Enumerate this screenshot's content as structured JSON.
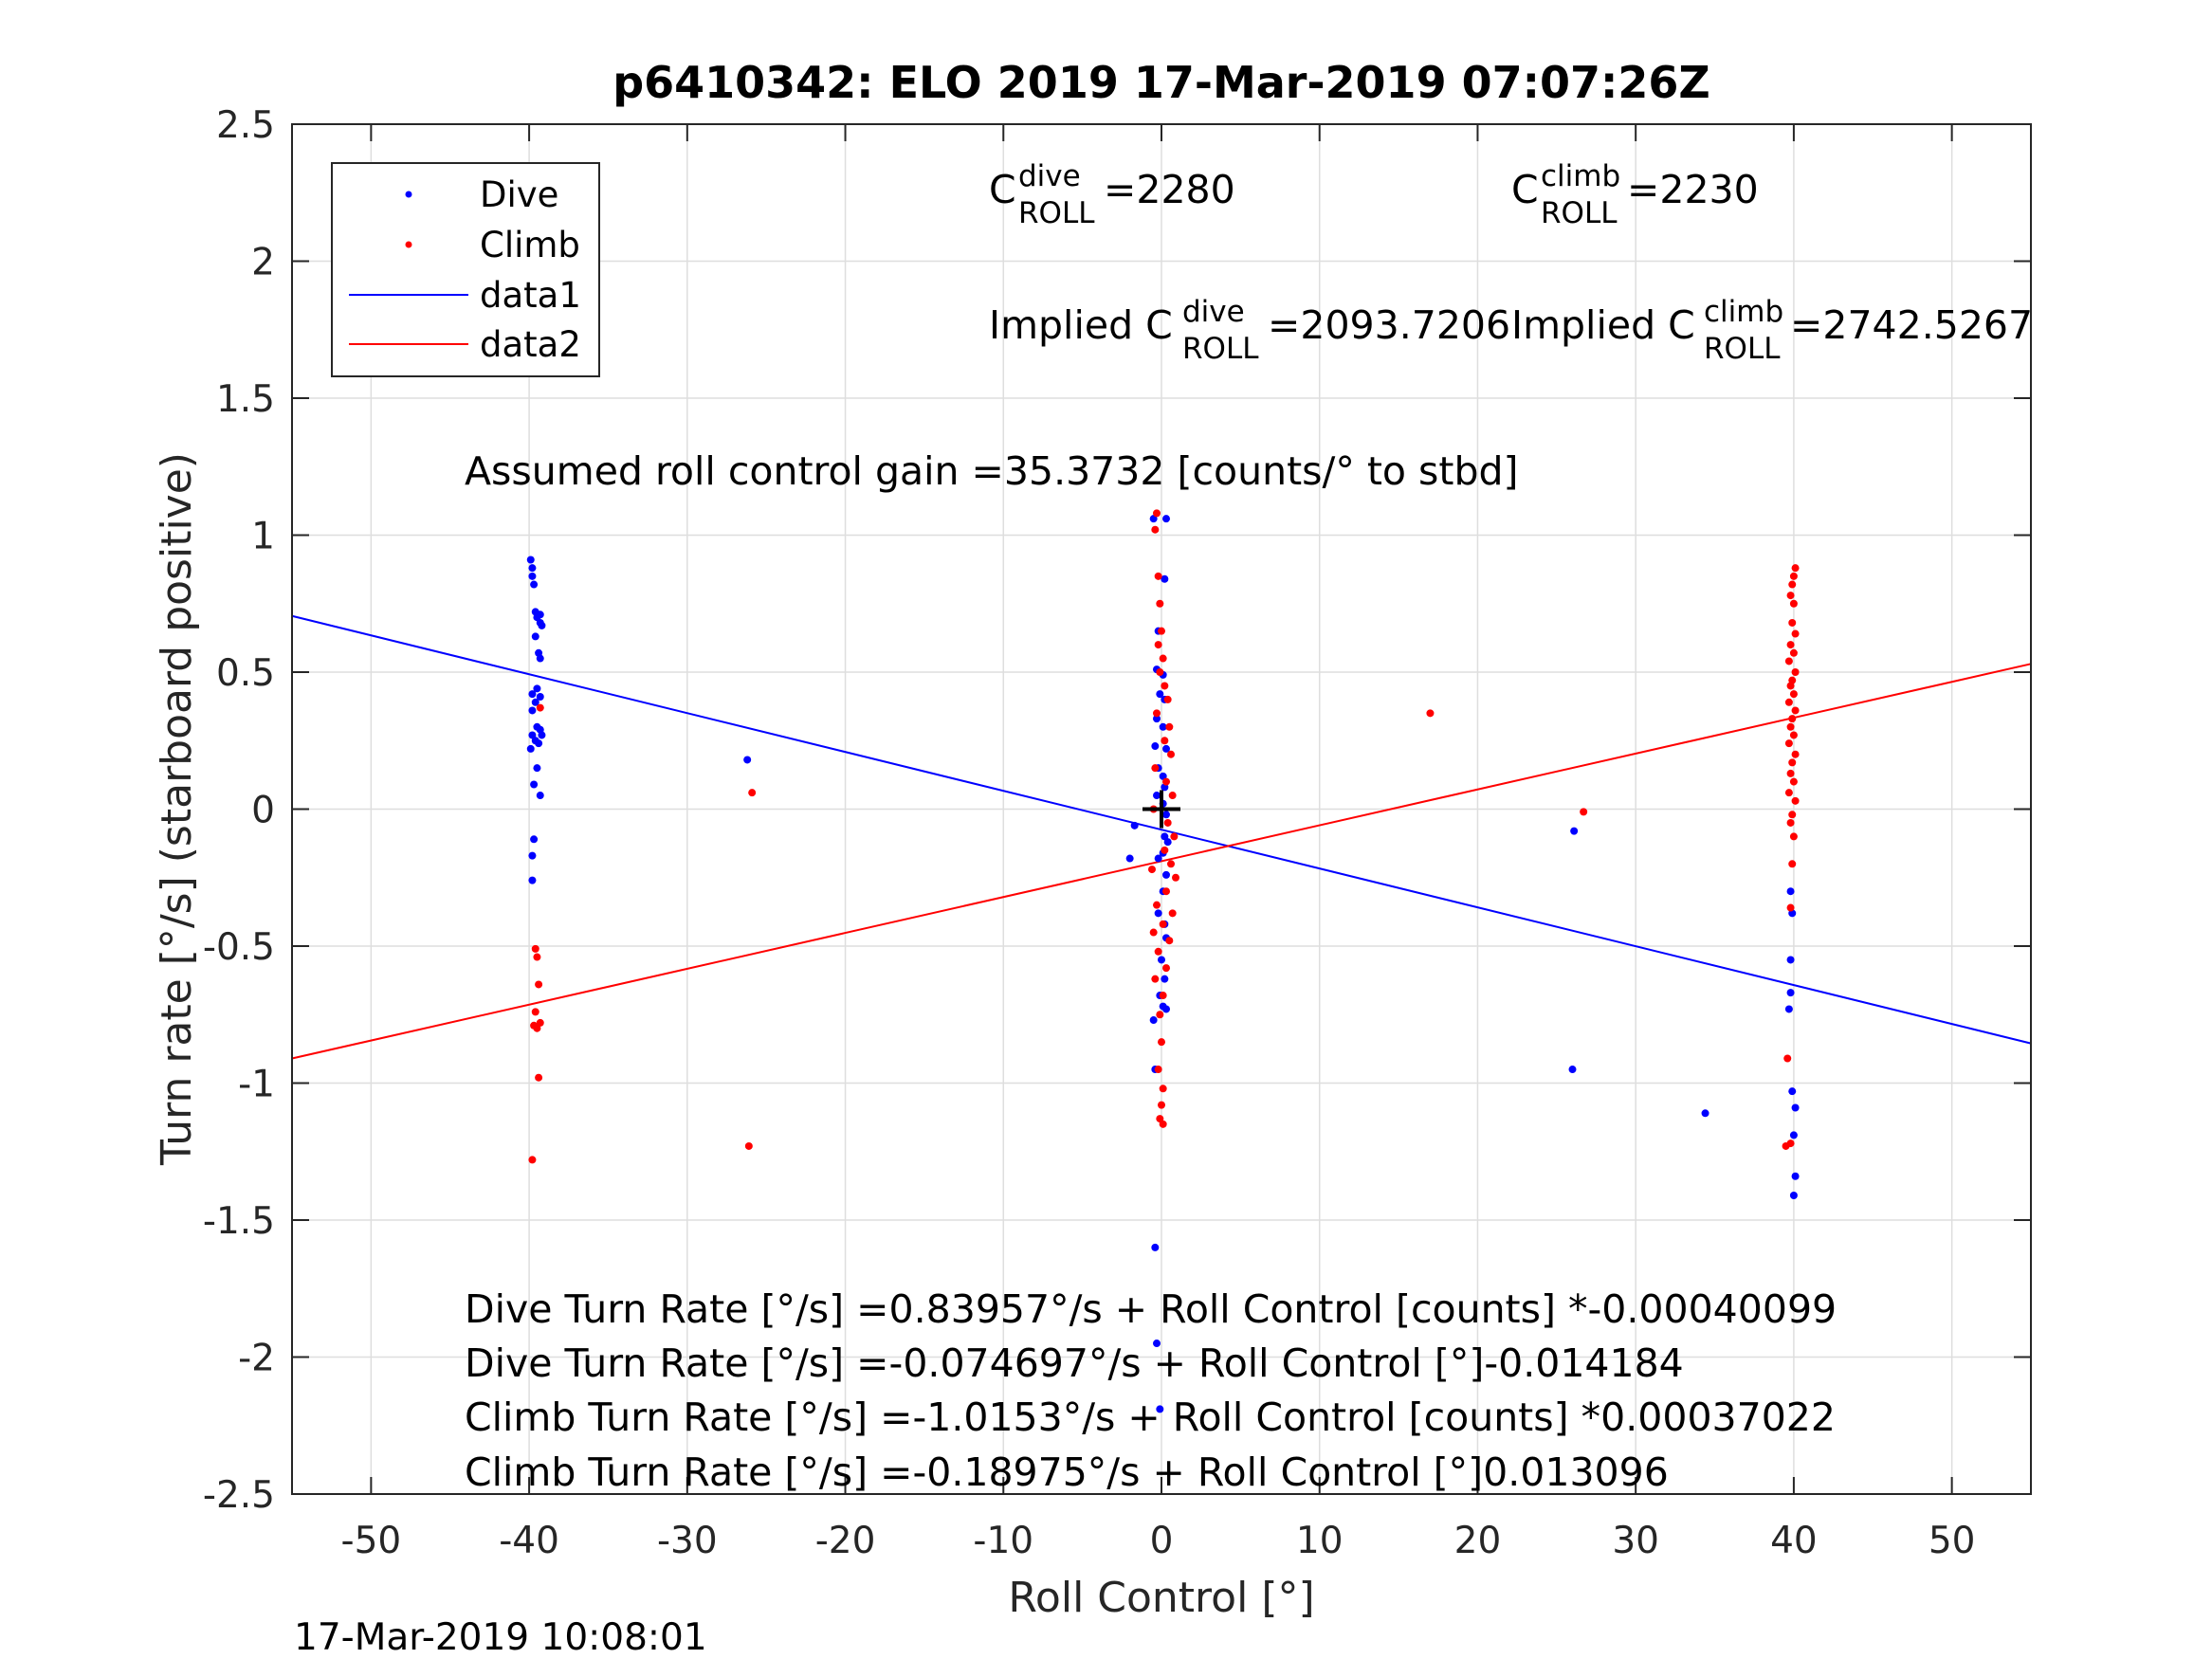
{
  "chart_data": {
    "type": "scatter",
    "title": "p6410342: ELO 2019 17-Mar-2019 07:07:26Z",
    "xlabel": "Roll Control [°]",
    "ylabel": "Turn rate [°/s] (starboard positive)",
    "xlim": [
      -55,
      55
    ],
    "ylim": [
      -2.5,
      2.5
    ],
    "xticks": [
      -50,
      -40,
      -30,
      -20,
      -10,
      0,
      10,
      20,
      30,
      40,
      50
    ],
    "yticks": [
      2.5,
      2,
      1.5,
      1,
      0.5,
      0,
      -0.5,
      -1,
      -1.5,
      -2,
      -2.5
    ],
    "xtick_labels": [
      "-50",
      "-40",
      "-30",
      "-20",
      "-10",
      "0",
      "10",
      "20",
      "30",
      "40",
      "50"
    ],
    "ytick_labels": [
      "2.5",
      "2",
      "1.5",
      "1",
      "0.5",
      "0",
      "-0.5",
      "-1",
      "-1.5",
      "-2",
      "-2.5"
    ],
    "grid": true,
    "legend_position": "top-left",
    "legend": [
      "Dive",
      "Climb",
      "data1",
      "data2"
    ],
    "series": [
      {
        "name": "Dive",
        "kind": "points",
        "color": "#0000ff",
        "points": [
          [
            -39.9,
            0.91
          ],
          [
            -39.8,
            0.88
          ],
          [
            -39.8,
            0.85
          ],
          [
            -39.7,
            0.82
          ],
          [
            -39.6,
            0.72
          ],
          [
            -39.5,
            0.7
          ],
          [
            -39.3,
            0.71
          ],
          [
            -39.3,
            0.68
          ],
          [
            -39.2,
            0.67
          ],
          [
            -39.6,
            0.63
          ],
          [
            -39.4,
            0.57
          ],
          [
            -39.3,
            0.55
          ],
          [
            -39.8,
            0.42
          ],
          [
            -39.5,
            0.44
          ],
          [
            -39.3,
            0.41
          ],
          [
            -39.6,
            0.39
          ],
          [
            -39.8,
            0.36
          ],
          [
            -39.5,
            0.3
          ],
          [
            -39.3,
            0.29
          ],
          [
            -39.8,
            0.27
          ],
          [
            -39.6,
            0.25
          ],
          [
            -39.4,
            0.24
          ],
          [
            -39.2,
            0.27
          ],
          [
            -39.9,
            0.22
          ],
          [
            -39.5,
            0.15
          ],
          [
            -39.7,
            0.09
          ],
          [
            -39.3,
            0.05
          ],
          [
            -39.7,
            -0.11
          ],
          [
            -39.8,
            -0.17
          ],
          [
            -39.8,
            -0.26
          ],
          [
            -26.2,
            0.18
          ],
          [
            -0.5,
            1.06
          ],
          [
            0.3,
            1.06
          ],
          [
            0.2,
            0.84
          ],
          [
            -0.2,
            0.65
          ],
          [
            -0.3,
            0.51
          ],
          [
            0.1,
            0.49
          ],
          [
            -0.1,
            0.42
          ],
          [
            0.2,
            0.4
          ],
          [
            -0.3,
            0.33
          ],
          [
            0.1,
            0.3
          ],
          [
            -0.4,
            0.23
          ],
          [
            0.3,
            0.22
          ],
          [
            -0.2,
            0.15
          ],
          [
            0.1,
            0.12
          ],
          [
            0.2,
            0.08
          ],
          [
            -0.3,
            0.05
          ],
          [
            0.1,
            0.02
          ],
          [
            0.3,
            -0.02
          ],
          [
            -1.7,
            -0.06
          ],
          [
            0.2,
            -0.1
          ],
          [
            0.4,
            -0.12
          ],
          [
            0.1,
            -0.16
          ],
          [
            -0.2,
            -0.18
          ],
          [
            -2.0,
            -0.18
          ],
          [
            0.3,
            -0.24
          ],
          [
            0.1,
            -0.3
          ],
          [
            -0.2,
            -0.38
          ],
          [
            0.2,
            -0.42
          ],
          [
            0.3,
            -0.47
          ],
          [
            0.0,
            -0.55
          ],
          [
            0.2,
            -0.62
          ],
          [
            -0.1,
            -0.68
          ],
          [
            0.1,
            -0.72
          ],
          [
            -0.5,
            -0.77
          ],
          [
            0.3,
            -0.73
          ],
          [
            -0.4,
            -0.95
          ],
          [
            -0.4,
            -1.6
          ],
          [
            -0.3,
            -1.95
          ],
          [
            -0.1,
            -2.19
          ],
          [
            26.1,
            -0.08
          ],
          [
            26.0,
            -0.95
          ],
          [
            34.4,
            -1.11
          ],
          [
            39.8,
            -0.3
          ],
          [
            39.9,
            -0.38
          ],
          [
            39.8,
            -0.55
          ],
          [
            39.8,
            -0.67
          ],
          [
            39.7,
            -0.73
          ],
          [
            39.9,
            -1.03
          ],
          [
            40.1,
            -1.09
          ],
          [
            40.0,
            -1.19
          ],
          [
            40.1,
            -1.34
          ],
          [
            40.0,
            -1.41
          ]
        ]
      },
      {
        "name": "Climb",
        "kind": "points",
        "color": "#ff0000",
        "points": [
          [
            -39.3,
            0.37
          ],
          [
            -39.6,
            -0.51
          ],
          [
            -39.5,
            -0.54
          ],
          [
            -39.4,
            -0.64
          ],
          [
            -39.6,
            -0.74
          ],
          [
            -39.3,
            -0.78
          ],
          [
            -39.5,
            -0.8
          ],
          [
            -39.7,
            -0.79
          ],
          [
            -39.4,
            -0.98
          ],
          [
            -39.8,
            -1.28
          ],
          [
            -25.9,
            0.06
          ],
          [
            -26.1,
            -1.23
          ],
          [
            -0.3,
            1.08
          ],
          [
            -0.4,
            1.02
          ],
          [
            -0.2,
            0.85
          ],
          [
            -0.1,
            0.75
          ],
          [
            0.0,
            0.65
          ],
          [
            -0.2,
            0.6
          ],
          [
            0.1,
            0.55
          ],
          [
            -0.1,
            0.5
          ],
          [
            0.2,
            0.45
          ],
          [
            0.4,
            0.4
          ],
          [
            -0.3,
            0.35
          ],
          [
            0.5,
            0.3
          ],
          [
            0.2,
            0.25
          ],
          [
            0.6,
            0.2
          ],
          [
            -0.4,
            0.15
          ],
          [
            0.3,
            0.1
          ],
          [
            0.7,
            0.05
          ],
          [
            -0.5,
            0.0
          ],
          [
            0.4,
            -0.05
          ],
          [
            0.8,
            -0.1
          ],
          [
            0.2,
            -0.15
          ],
          [
            0.6,
            -0.2
          ],
          [
            -0.6,
            -0.22
          ],
          [
            0.9,
            -0.25
          ],
          [
            0.3,
            -0.3
          ],
          [
            -0.3,
            -0.35
          ],
          [
            0.7,
            -0.38
          ],
          [
            0.1,
            -0.42
          ],
          [
            -0.5,
            -0.45
          ],
          [
            0.5,
            -0.48
          ],
          [
            -0.2,
            -0.52
          ],
          [
            0.3,
            -0.58
          ],
          [
            -0.4,
            -0.62
          ],
          [
            0.1,
            -0.68
          ],
          [
            -0.1,
            -0.75
          ],
          [
            0.0,
            -0.85
          ],
          [
            -0.2,
            -0.95
          ],
          [
            0.1,
            -1.02
          ],
          [
            0.0,
            -1.08
          ],
          [
            -0.1,
            -1.13
          ],
          [
            0.1,
            -1.15
          ],
          [
            17.0,
            0.35
          ],
          [
            26.7,
            -0.01
          ],
          [
            40.1,
            0.88
          ],
          [
            40.0,
            0.85
          ],
          [
            39.9,
            0.82
          ],
          [
            39.8,
            0.78
          ],
          [
            40.0,
            0.75
          ],
          [
            39.9,
            0.68
          ],
          [
            40.1,
            0.64
          ],
          [
            39.8,
            0.6
          ],
          [
            40.0,
            0.57
          ],
          [
            39.7,
            0.54
          ],
          [
            40.1,
            0.5
          ],
          [
            39.9,
            0.47
          ],
          [
            39.8,
            0.45
          ],
          [
            40.0,
            0.42
          ],
          [
            39.7,
            0.39
          ],
          [
            40.1,
            0.36
          ],
          [
            39.9,
            0.33
          ],
          [
            39.8,
            0.3
          ],
          [
            40.0,
            0.27
          ],
          [
            39.7,
            0.24
          ],
          [
            40.1,
            0.2
          ],
          [
            39.9,
            0.17
          ],
          [
            39.8,
            0.13
          ],
          [
            40.0,
            0.1
          ],
          [
            39.7,
            0.06
          ],
          [
            40.1,
            0.03
          ],
          [
            39.9,
            -0.02
          ],
          [
            39.8,
            -0.05
          ],
          [
            40.0,
            -0.1
          ],
          [
            39.9,
            -0.2
          ],
          [
            39.8,
            -0.36
          ],
          [
            39.6,
            -0.91
          ],
          [
            39.8,
            -1.22
          ],
          [
            39.5,
            -1.23
          ]
        ]
      },
      {
        "name": "data1",
        "kind": "line",
        "color": "#0000ff",
        "x": [
          -55,
          55
        ],
        "y": [
          0.705,
          -0.855
        ]
      },
      {
        "name": "data2",
        "kind": "line",
        "color": "#ff0000",
        "x": [
          -55,
          55
        ],
        "y": [
          -0.91,
          0.53
        ]
      },
      {
        "name": "",
        "kind": "marker",
        "color": "#000000",
        "points": [
          [
            0,
            0
          ]
        ]
      }
    ],
    "annotations": {
      "c_dive": {
        "base": "C",
        "sup": "dive",
        "sub": "ROLL",
        "text": " =2280"
      },
      "c_climb": {
        "base": "C",
        "sup": "climb",
        "sub": "ROLL",
        "text": " =2230"
      },
      "implied_dive": {
        "base": "Implied C",
        "sup": "dive",
        "sub": "ROLL",
        "text": " =2093.7206"
      },
      "implied_climb": {
        "base": "Implied C",
        "sup": "climb",
        "sub": "ROLL",
        "text": " =2742.5267"
      },
      "gain": "Assumed roll control gain =35.3732 [counts/° to stbd]",
      "eq1": "Dive Turn Rate [°/s] =0.83957°/s + Roll Control [counts] *-0.00040099",
      "eq2": "Dive Turn Rate [°/s] =-0.074697°/s + Roll Control [°]-0.014184",
      "eq3": "Climb Turn Rate [°/s] =-1.0153°/s + Roll Control [counts] *0.00037022",
      "eq4": "Climb Turn Rate [°/s] =-0.18975°/s + Roll Control [°]0.013096"
    },
    "timestamp": "17-Mar-2019 10:08:01"
  }
}
